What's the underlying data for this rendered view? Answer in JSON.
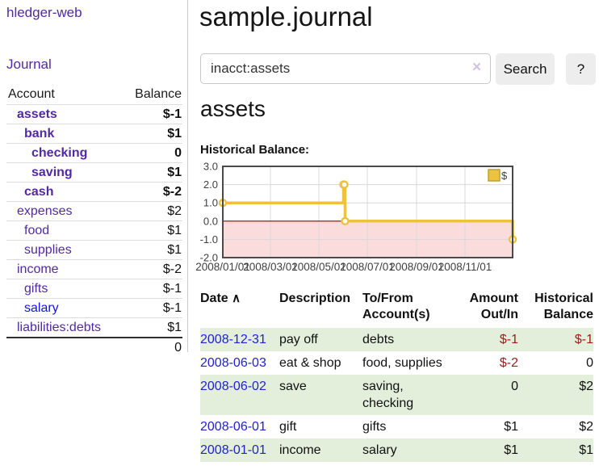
{
  "app": {
    "brand": "hledger-web"
  },
  "sidebar": {
    "nav_journal": "Journal",
    "accounts_table": {
      "headers": {
        "account": "Account",
        "balance": "Balance"
      },
      "rows": [
        {
          "account": "assets",
          "balance": "$-1",
          "depth": 1,
          "bold": true
        },
        {
          "account": "bank",
          "balance": "$1",
          "depth": 2,
          "bold": true
        },
        {
          "account": "checking",
          "balance": "0",
          "depth": 3,
          "bold": true
        },
        {
          "account": "saving",
          "balance": "$1",
          "depth": 3,
          "bold": true
        },
        {
          "account": "cash",
          "balance": "$-2",
          "depth": 2,
          "bold": true
        },
        {
          "account": "expenses",
          "balance": "$2",
          "depth": 1,
          "bold": false
        },
        {
          "account": "food",
          "balance": "$1",
          "depth": 2,
          "bold": false
        },
        {
          "account": "supplies",
          "balance": "$1",
          "depth": 2,
          "bold": false
        },
        {
          "account": "income",
          "balance": "$-2",
          "depth": 1,
          "bold": false
        },
        {
          "account": "gifts",
          "balance": "$-1",
          "depth": 2,
          "bold": false
        },
        {
          "account": "salary",
          "balance": "$-1",
          "depth": 2,
          "bold": false,
          "link_style": "unvisited"
        },
        {
          "account": "liabilities:debts",
          "balance": "$1",
          "depth": 1,
          "bold": false
        }
      ],
      "total": "0"
    }
  },
  "main": {
    "title": "sample.journal",
    "search": {
      "value": "inacct:assets",
      "clear_icon": "×",
      "button": "Search",
      "help": "?"
    },
    "account_heading": "assets",
    "chart_title": "Historical Balance:",
    "register_table": {
      "sort_icon": "∧",
      "headers": {
        "date": "Date",
        "description": "Description",
        "accounts": "To/From Account(s)",
        "amount": "Amount Out/In",
        "balance": "Historical Balance"
      },
      "rows": [
        {
          "date": "2008-12-31",
          "description": "pay off",
          "accounts": "debts",
          "amount": "$-1",
          "balance": "$-1"
        },
        {
          "date": "2008-06-03",
          "description": "eat & shop",
          "accounts": "food, supplies",
          "amount": "$-2",
          "balance": "0"
        },
        {
          "date": "2008-06-02",
          "description": "save",
          "accounts": "saving, checking",
          "amount": "0",
          "balance": "$2"
        },
        {
          "date": "2008-06-01",
          "description": "gift",
          "accounts": "gifts",
          "amount": "$1",
          "balance": "$2"
        },
        {
          "date": "2008-01-01",
          "description": "income",
          "accounts": "salary",
          "amount": "$1",
          "balance": "$1"
        }
      ]
    }
  },
  "chart_data": {
    "type": "line",
    "style": "step-after",
    "title": "Historical Balance:",
    "series": [
      {
        "name": "$",
        "color": "#edc240",
        "points": [
          {
            "date": "2008-01-01",
            "value": 1
          },
          {
            "date": "2008-06-01",
            "value": 2
          },
          {
            "date": "2008-06-02",
            "value": 2
          },
          {
            "date": "2008-06-03",
            "value": 0
          },
          {
            "date": "2008-12-31",
            "value": -1
          }
        ]
      }
    ],
    "x_range": [
      "2008-01-01",
      "2008-12-31"
    ],
    "x_ticks": [
      {
        "date": "2008-01-01",
        "label": "2008/01/01"
      },
      {
        "date": "2008-03-01",
        "label": "2008/03/01"
      },
      {
        "date": "2008-05-01",
        "label": "2008/05/01"
      },
      {
        "date": "2008-07-01",
        "label": "2008/07/01"
      },
      {
        "date": "2008-09-01",
        "label": "2008/09/01"
      },
      {
        "date": "2008-11-01",
        "label": "2008/11/01"
      }
    ],
    "y_ticks": [
      "3.0",
      "2.0",
      "1.0",
      "0.0",
      "-1.0",
      "-2.0"
    ],
    "ylim": [
      -2,
      3
    ],
    "grid": true,
    "legend_position": "top-right",
    "legend": {
      "label": "$",
      "swatch_color": "#edc240"
    },
    "negative_region_color": "#fbdcdc",
    "zero_line_color": "#8b0000",
    "grid_color": "#d8d8d8"
  },
  "colors": {
    "purple": "#5229a3",
    "link-blue": "#2222cc",
    "unvisited-blue": "#1111ee",
    "negative": "#9c1b1b",
    "negative-muted": "#c68181",
    "row-green": "#e3efdb",
    "series-gold": "#edc240"
  }
}
